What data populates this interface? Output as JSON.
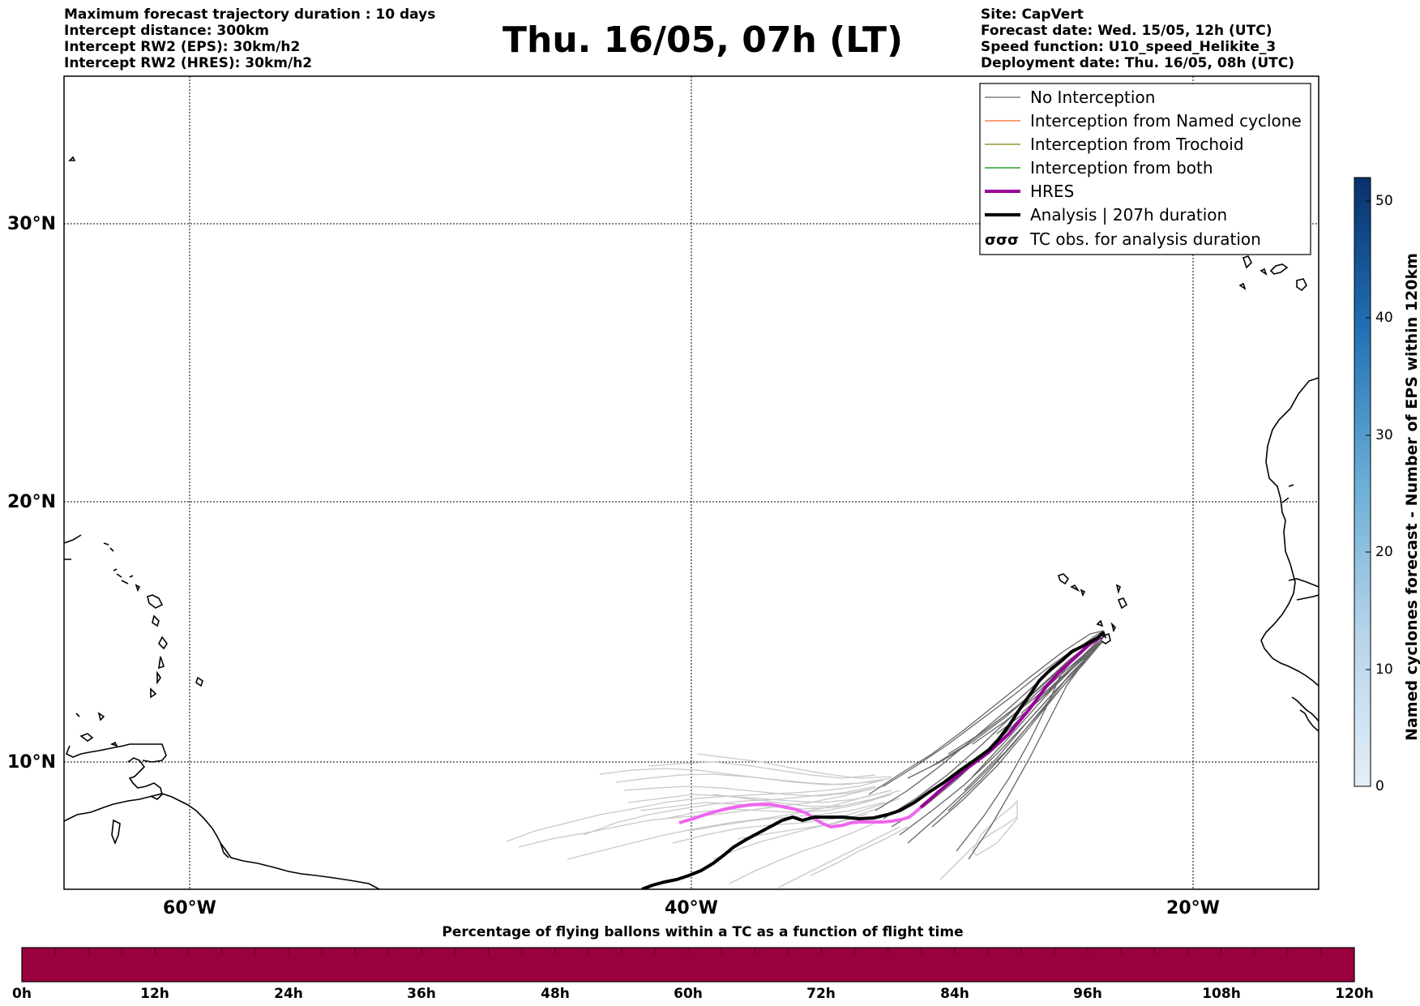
{
  "header": {
    "left_lines": [
      "Maximum forecast trajectory duration : 10 days",
      "Intercept distance: 300km",
      "Intercept RW2 (EPS):  30km/h2",
      "Intercept RW2 (HRES): 30km/h2"
    ],
    "title": "Thu. 16/05, 07h (LT)",
    "right_lines": [
      "Site: CapVert",
      "Forecast date: Wed. 15/05, 12h (UTC)",
      "Speed function: U10_speed_Helikite_3",
      "Deployment date: Thu. 16/05, 08h (UTC)"
    ]
  },
  "map": {
    "lat_labels": [
      "30°N",
      "20°N",
      "10°N"
    ],
    "lon_labels": [
      "60°W",
      "40°W",
      "20°W"
    ],
    "colors": {
      "no_interception": "#808080",
      "named_cyclone": "#ff7f50",
      "trochoid": "#999933",
      "both": "#2ca02c",
      "hres": "#990099",
      "hres_track": "#ee66ee",
      "analysis": "#000000",
      "eps_dark": "#666666",
      "eps_light": "#c8c8c8"
    }
  },
  "legend": {
    "items": [
      "No Interception",
      "Interception from Named cyclone",
      "Interception from Trochoid",
      "Interception from both",
      "HRES",
      "Analysis | 207h duration",
      "TC obs. for analysis duration"
    ],
    "tc_symbol": "σσσ"
  },
  "colorbar": {
    "title": "Named cyclones forecast - Number of EPS within 120km",
    "ticks": [
      "0",
      "10",
      "20",
      "30",
      "40",
      "50"
    ],
    "range": [
      0,
      52
    ],
    "color_low": "#e3eef8",
    "color_high": "#08306b"
  },
  "timeline": {
    "title": "Percentage of flying ballons within a TC as a function of flight time",
    "ticks": [
      "0h",
      "12h",
      "24h",
      "36h",
      "48h",
      "60h",
      "72h",
      "84h",
      "96h",
      "108h",
      "120h"
    ],
    "fill_color": "#99003d"
  }
}
